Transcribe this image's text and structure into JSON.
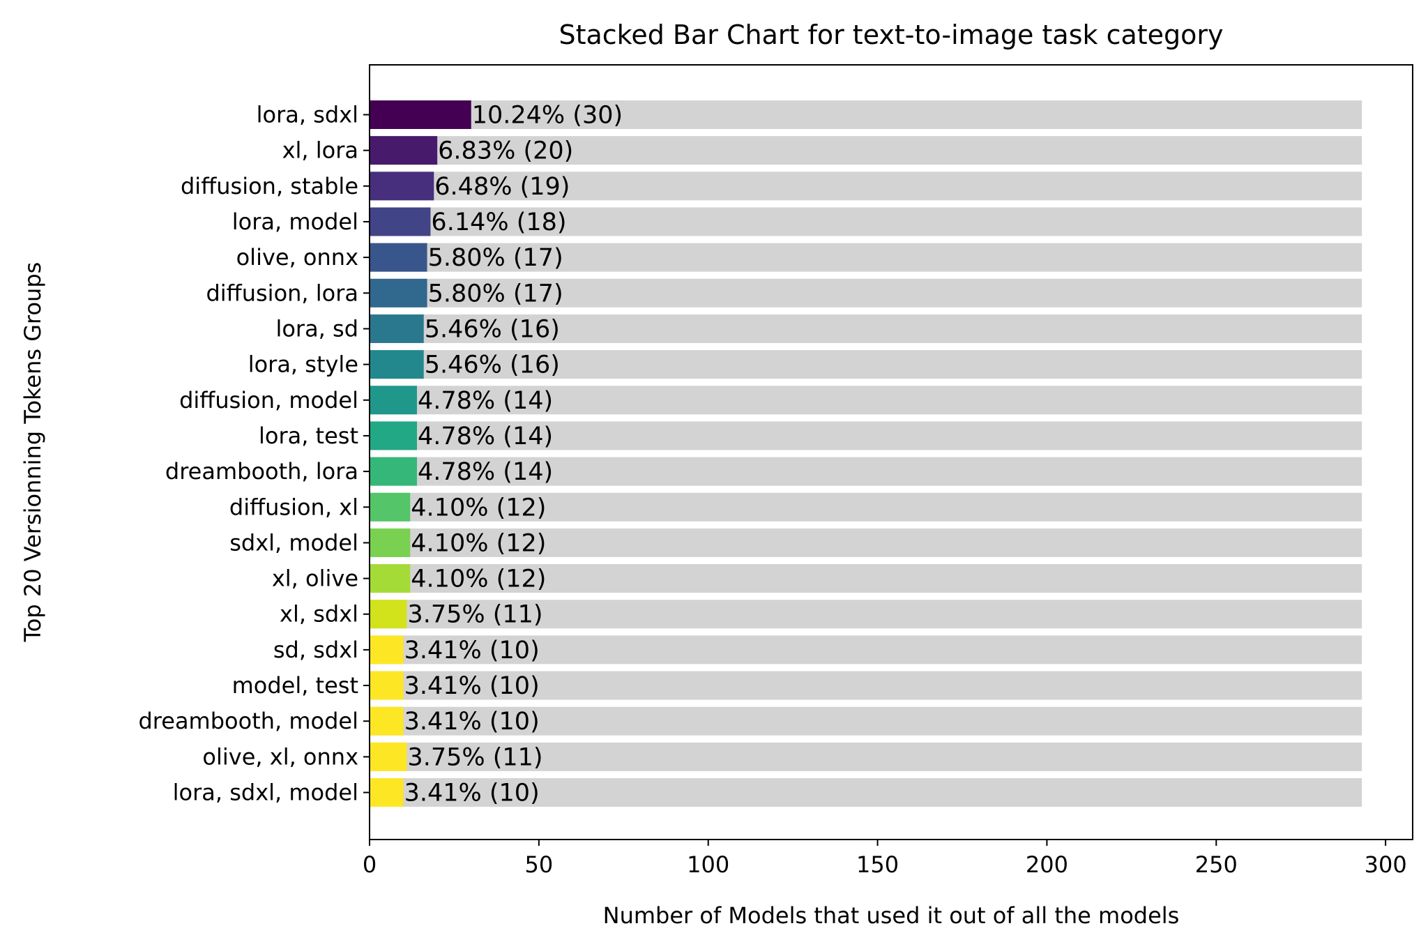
{
  "chart_data": {
    "type": "bar",
    "orientation": "horizontal",
    "stacked": true,
    "title": "Stacked Bar Chart for text-to-image task category",
    "xlabel": "Number of Models that used it out of all the models",
    "ylabel": "Top 20 Versionning Tokens Groups",
    "xlim": [
      0,
      308
    ],
    "xticks": [
      0,
      50,
      100,
      150,
      200,
      250,
      300
    ],
    "total": 293,
    "categories": [
      "lora, sdxl",
      "xl, lora",
      "diffusion, stable",
      "lora, model",
      "olive, onnx",
      "diffusion, lora",
      "lora, sd",
      "lora, style",
      "diffusion, model",
      "lora, test",
      "dreambooth, lora",
      "diffusion, xl",
      "sdxl, model",
      "xl, olive",
      "xl, sdxl",
      "sd, sdxl",
      "model, test",
      "dreambooth, model",
      "olive, xl, onnx",
      "lora, sdxl, model"
    ],
    "values": [
      30,
      20,
      19,
      18,
      17,
      17,
      16,
      16,
      14,
      14,
      14,
      12,
      12,
      12,
      11,
      10,
      10,
      10,
      11,
      10
    ],
    "labels": [
      "10.24% (30)",
      "6.83% (20)",
      "6.48% (19)",
      "6.14% (18)",
      "5.80% (17)",
      "5.80% (17)",
      "5.46% (16)",
      "5.46% (16)",
      "4.78% (14)",
      "4.78% (14)",
      "4.78% (14)",
      "4.10% (12)",
      "4.10% (12)",
      "4.10% (12)",
      "3.75% (11)",
      "3.41% (10)",
      "3.41% (10)",
      "3.41% (10)",
      "3.75% (11)",
      "3.41% (10)"
    ],
    "colors": [
      "#440154",
      "#481a6c",
      "#472f7d",
      "#414487",
      "#39568c",
      "#31688e",
      "#2a788e",
      "#23888e",
      "#1f988b",
      "#22a884",
      "#35b779",
      "#54c568",
      "#7ad151",
      "#a5db36",
      "#d2e21b",
      "#fde725",
      "#fde725",
      "#fde725",
      "#fde725",
      "#fde725"
    ],
    "background_color": "#d3d3d3",
    "grid": false,
    "legend": "none"
  }
}
